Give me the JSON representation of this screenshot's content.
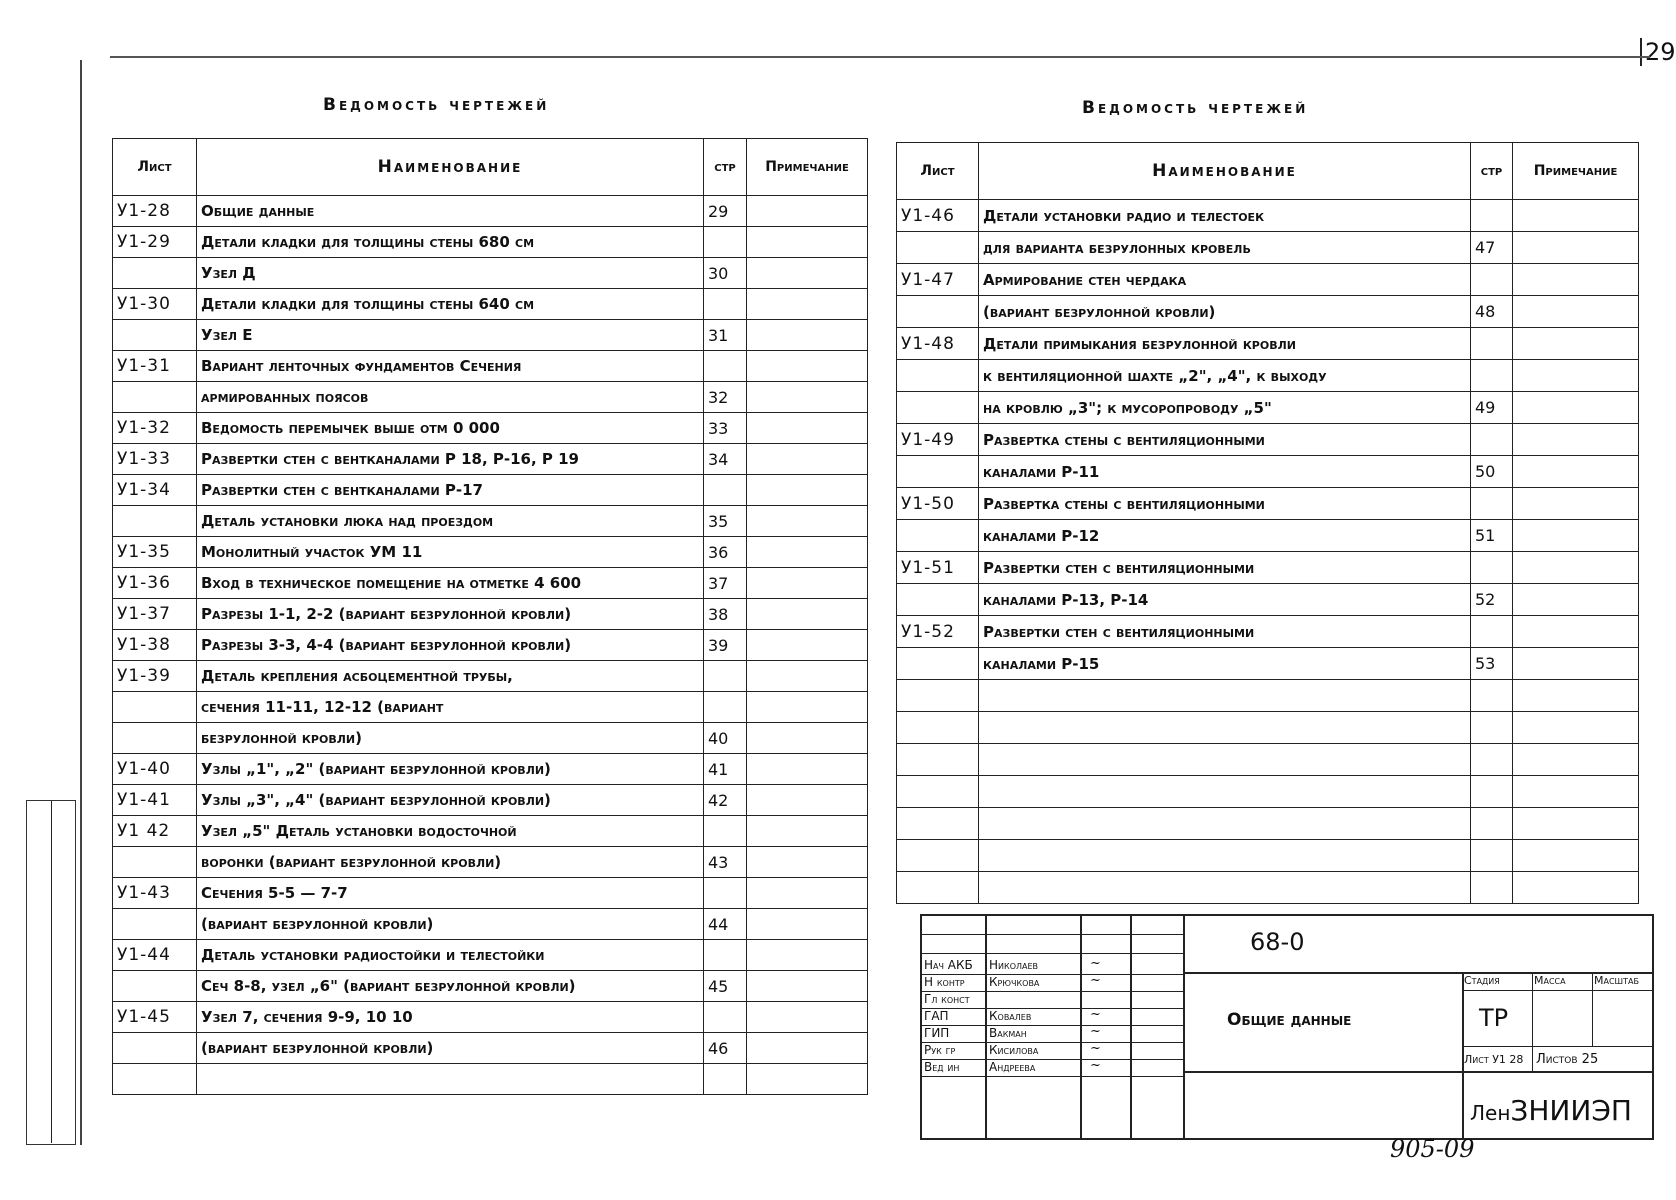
{
  "page_number": "29",
  "left": {
    "title": "Ведомость чертежей",
    "headers": [
      "Лист",
      "Наименование",
      "стр",
      "Примечание"
    ],
    "rows": [
      [
        "У1-28",
        "Общие данные",
        "29",
        ""
      ],
      [
        "У1-29",
        "Детали кладки для толщины стены 680 см",
        "",
        ""
      ],
      [
        "",
        "Узел Д",
        "30",
        ""
      ],
      [
        "У1-30",
        "Детали кладки для толщины стены 640 см",
        "",
        ""
      ],
      [
        "",
        "Узел Е",
        "31",
        ""
      ],
      [
        "У1-31",
        "Вариант ленточных фундаментов Сечения",
        "",
        ""
      ],
      [
        "",
        "армированных поясов",
        "32",
        ""
      ],
      [
        "У1-32",
        "Ведомость перемычек выше отм 0 000",
        "33",
        ""
      ],
      [
        "У1-33",
        "Развертки стен с вентканалами Р 18, Р-16, Р 19",
        "34",
        ""
      ],
      [
        "У1-34",
        "Развертки стен с вентканалами Р-17",
        "",
        ""
      ],
      [
        "",
        "Деталь установки люка над проездом",
        "35",
        ""
      ],
      [
        "У1-35",
        "Монолитный участок УМ 11",
        "36",
        ""
      ],
      [
        "У1-36",
        "Вход в техническое помещение на отметке 4 600",
        "37",
        ""
      ],
      [
        "У1-37",
        "Разрезы 1-1, 2-2 (вариант безрулонной кровли)",
        "38",
        ""
      ],
      [
        "У1-38",
        "Разрезы 3-3, 4-4 (вариант безрулонной кровли)",
        "39",
        ""
      ],
      [
        "У1-39",
        "Деталь крепления асбоцементной трубы,",
        "",
        ""
      ],
      [
        "",
        "сечения 11-11, 12-12 (вариант",
        "",
        ""
      ],
      [
        "",
        "безрулонной кровли)",
        "40",
        ""
      ],
      [
        "У1-40",
        "Узлы „1\", „2\" (вариант безрулонной кровли)",
        "41",
        ""
      ],
      [
        "У1-41",
        "Узлы „3\", „4\" (вариант безрулонной кровли)",
        "42",
        ""
      ],
      [
        "У1 42",
        "Узел „5\" Деталь установки водосточной",
        "",
        ""
      ],
      [
        "",
        "воронки (вариант безрулонной кровли)",
        "43",
        ""
      ],
      [
        "У1-43",
        "Сечения 5-5 — 7-7",
        "",
        ""
      ],
      [
        "",
        "(вариант безрулонной кровли)",
        "44",
        ""
      ],
      [
        "У1-44",
        "Деталь установки радиостойки и телестойки",
        "",
        ""
      ],
      [
        "",
        "Сеч 8-8, узел „6\" (вариант безрулонной кровли)",
        "45",
        ""
      ],
      [
        "У1-45",
        "Узел 7, сечения 9-9, 10 10",
        "",
        ""
      ],
      [
        "",
        "(вариант безрулонной кровли)",
        "46",
        ""
      ],
      [
        "",
        "",
        "",
        ""
      ]
    ]
  },
  "right": {
    "title": "Ведомость чертежей",
    "headers": [
      "Лист",
      "Наименование",
      "стр",
      "Примечание"
    ],
    "rows": [
      [
        "У1-46",
        "Детали установки радио и телестоек",
        "",
        ""
      ],
      [
        "",
        "для варианта безрулонных кровель",
        "47",
        ""
      ],
      [
        "У1-47",
        "Армирование стен чердака",
        "",
        ""
      ],
      [
        "",
        "(вариант безрулонной кровли)",
        "48",
        ""
      ],
      [
        "У1-48",
        "Детали примыкания безрулонной кровли",
        "",
        ""
      ],
      [
        "",
        "к вентиляционной шахте „2\", „4\", к выходу",
        "",
        ""
      ],
      [
        "",
        "на кровлю „3\"; к мусоропроводу „5\"",
        "49",
        ""
      ],
      [
        "У1-49",
        "Развертка стены с вентиляционными",
        "",
        ""
      ],
      [
        "",
        "каналами Р-11",
        "50",
        ""
      ],
      [
        "У1-50",
        "Развертка стены с вентиляционными",
        "",
        ""
      ],
      [
        "",
        "каналами Р-12",
        "51",
        ""
      ],
      [
        "У1-51",
        "Развертки стен с вентиляционными",
        "",
        ""
      ],
      [
        "",
        "каналами Р-13, Р-14",
        "52",
        ""
      ],
      [
        "У1-52",
        "Развертки стен с вентиляционными",
        "",
        ""
      ],
      [
        "",
        "каналами Р-15",
        "53",
        ""
      ],
      [
        "",
        "",
        "",
        ""
      ],
      [
        "",
        "",
        "",
        ""
      ],
      [
        "",
        "",
        "",
        ""
      ],
      [
        "",
        "",
        "",
        ""
      ],
      [
        "",
        "",
        "",
        ""
      ],
      [
        "",
        "",
        "",
        ""
      ],
      [
        "",
        "",
        "",
        ""
      ]
    ]
  },
  "title_block": {
    "code": "68-0",
    "sheet_name": "Общие данные",
    "roles": [
      {
        "role": "Нач АКБ",
        "name": "Николаев"
      },
      {
        "role": "Н контр",
        "name": "Крючкова"
      },
      {
        "role": "Гл конст",
        "name": ""
      },
      {
        "role": "ГАП",
        "name": "Ковалев"
      },
      {
        "role": "ГИП",
        "name": "Вакман"
      },
      {
        "role": "Рук гр",
        "name": "Кисилова"
      },
      {
        "role": "Вед ин",
        "name": "Андреева"
      }
    ],
    "stage_label": "Стадия",
    "mass_label": "Масса",
    "scale_label": "Масштаб",
    "stage": "ТР",
    "sheet_label": "Лист У1 28",
    "sheets_label": "Листов 25",
    "organization_prefix": "Лен",
    "organization": "ЗНИИЭП",
    "handwritten_number": "905-09"
  }
}
